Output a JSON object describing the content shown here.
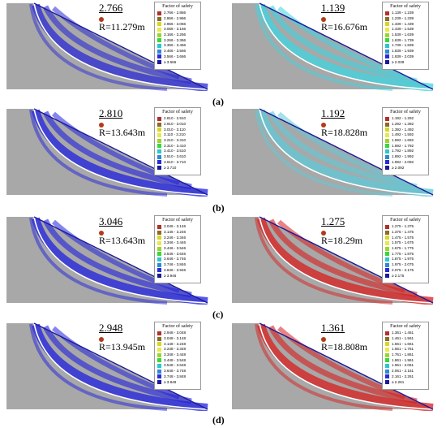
{
  "legend_title": "Factor of safety",
  "rows": [
    {
      "tag": "(a)",
      "panels": [
        {
          "fos": "2.766",
          "r": "R=11.279m",
          "accent": "#2a2ad6",
          "legend": [
            "2.766 - 2.866",
            "2.866 - 2.966",
            "2.966 - 3.066",
            "3.066 - 3.166",
            "3.166 - 3.266",
            "3.266 - 3.366",
            "3.366 - 3.466",
            "3.466 - 3.566",
            "3.566 - 3.666",
            "≥ 3.666"
          ]
        },
        {
          "fos": "1.139",
          "r": "R=16.676m",
          "accent": "#3fd4e0",
          "legend": [
            "1.139 - 1.239",
            "1.239 - 1.339",
            "1.339 - 1.439",
            "1.439 - 1.539",
            "1.539 - 1.639",
            "1.639 - 1.739",
            "1.739 - 1.839",
            "1.839 - 1.939",
            "1.939 - 2.039",
            "≥ 2.039"
          ]
        }
      ]
    },
    {
      "tag": "(b)",
      "panels": [
        {
          "fos": "2.810",
          "r": "R=13.643m",
          "accent": "#2020e0",
          "legend": [
            "2.810 - 2.910",
            "2.910 - 3.010",
            "3.010 - 3.110",
            "3.110 - 3.210",
            "3.210 - 3.310",
            "3.310 - 3.410",
            "3.410 - 3.510",
            "3.510 - 3.610",
            "3.610 - 3.710",
            "≥ 3.710"
          ]
        },
        {
          "fos": "1.192",
          "r": "R=18.828m",
          "accent": "#5fc9d8",
          "legend": [
            "1.192 - 1.292",
            "1.292 - 1.392",
            "1.392 - 1.492",
            "1.492 - 1.592",
            "1.592 - 1.692",
            "1.692 - 1.792",
            "1.792 - 1.892",
            "1.892 - 1.992",
            "1.992 - 2.092",
            "≥ 2.092"
          ]
        }
      ]
    },
    {
      "tag": "(c)",
      "panels": [
        {
          "fos": "3.046",
          "r": "R=13.643m",
          "accent": "#2020e0",
          "legend": [
            "3.046 - 3.146",
            "3.146 - 3.246",
            "3.246 - 3.346",
            "3.346 - 3.446",
            "3.446 - 3.546",
            "3.546 - 3.646",
            "3.646 - 3.746",
            "3.746 - 3.846",
            "3.846 - 3.946",
            "≥ 3.946"
          ]
        },
        {
          "fos": "1.275",
          "r": "R=18.29m",
          "accent": "#d81e1e",
          "legend": [
            "1.275 - 1.375",
            "1.375 - 1.475",
            "1.475 - 1.575",
            "1.575 - 1.675",
            "1.675 - 1.775",
            "1.775 - 1.875",
            "1.875 - 1.975",
            "1.975 - 2.075",
            "2.075 - 2.175",
            "≥ 2.175"
          ]
        }
      ]
    },
    {
      "tag": "(d)",
      "panels": [
        {
          "fos": "2.948",
          "r": "R=13.945m",
          "accent": "#2020e0",
          "legend": [
            "2.948 - 3.048",
            "3.048 - 3.148",
            "3.148 - 3.248",
            "3.248 - 3.348",
            "3.348 - 3.448",
            "3.448 - 3.548",
            "3.548 - 3.648",
            "3.648 - 3.748",
            "3.748 - 3.848",
            "≥ 3.848"
          ]
        },
        {
          "fos": "1.361",
          "r": "R=18.808m",
          "accent": "#d81e1e",
          "legend": [
            "1.361 - 1.461",
            "1.461 - 1.561",
            "1.561 - 1.661",
            "1.661 - 1.761",
            "1.761 - 1.861",
            "1.861 - 1.961",
            "1.961 - 2.061",
            "2.061 - 2.161",
            "2.161 - 2.261",
            "≥ 2.261"
          ]
        }
      ]
    }
  ],
  "swatch_colors": [
    "#b0302a",
    "#8a6a2a",
    "#d6d62a",
    "#e8e84a",
    "#9ad62a",
    "#3ad63a",
    "#2ac8c8",
    "#2a8ad6",
    "#2a2ad6",
    "#1a1a9a"
  ]
}
